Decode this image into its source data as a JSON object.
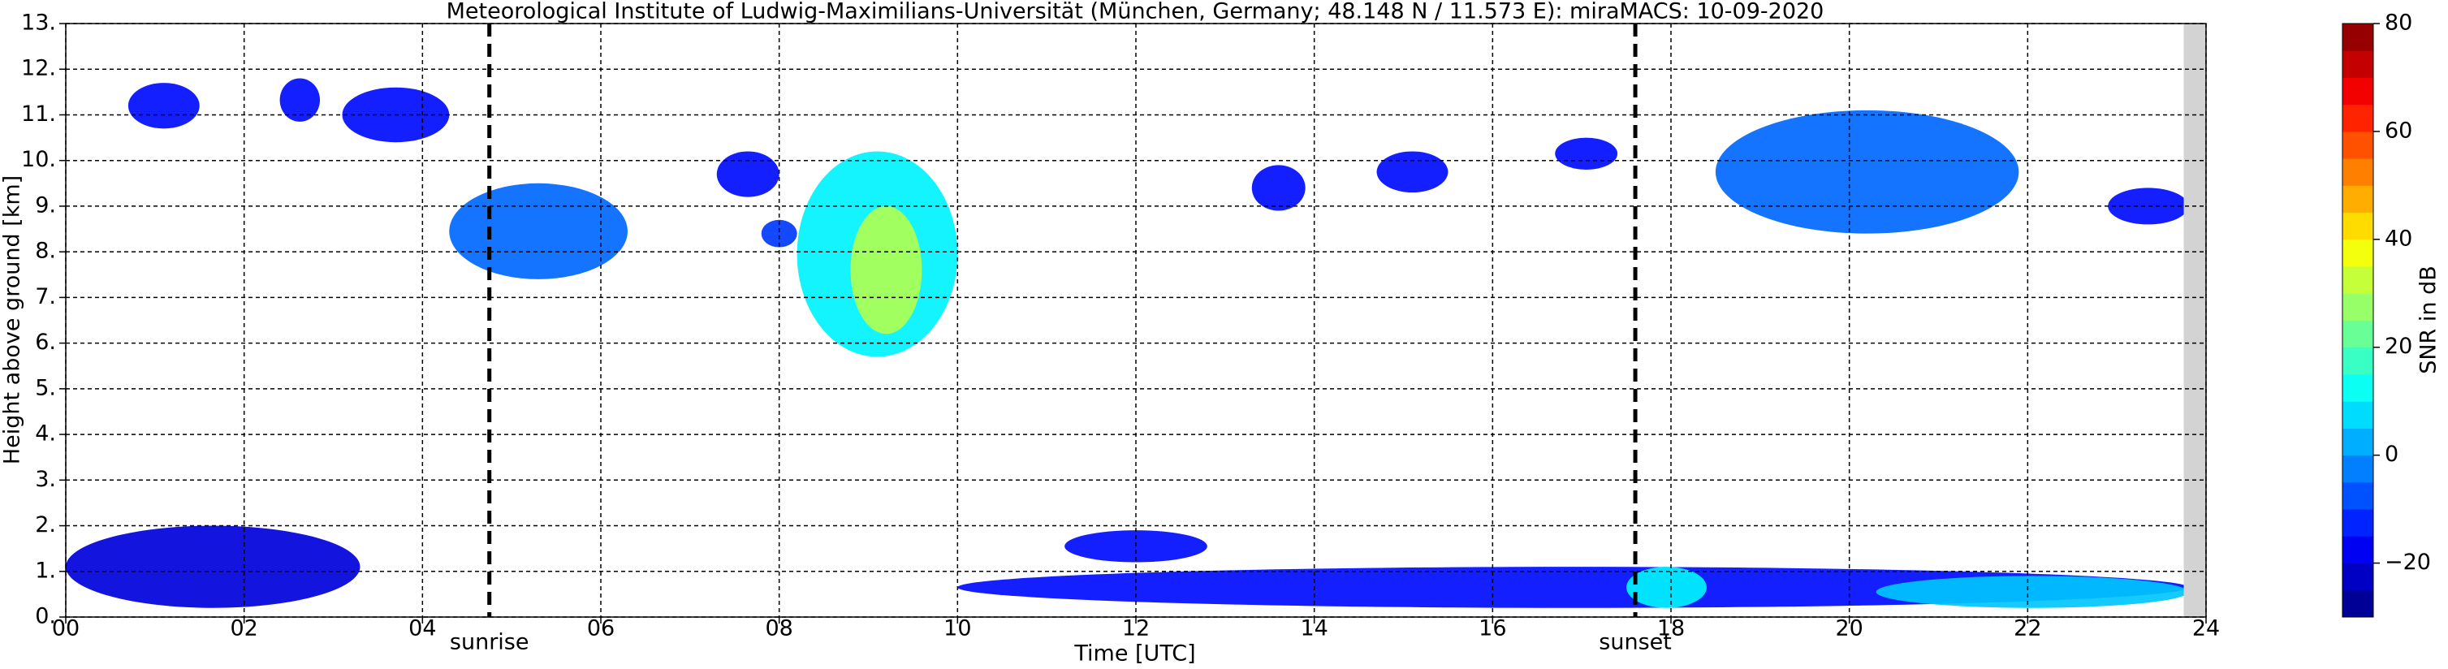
{
  "chart_data": {
    "type": "heatmap",
    "title": "Meteorological Institute of Ludwig-Maximilians-Universität (München, Germany; 48.148 N / 11.573 E):    miraMACS: 10-09-2020",
    "x_label": "Time [UTC]",
    "y_label": "Height above ground [km]",
    "xlim": [
      0,
      24
    ],
    "xticks": [
      {
        "value": 0,
        "label": "00"
      },
      {
        "value": 2,
        "label": "02"
      },
      {
        "value": 4,
        "label": "04"
      },
      {
        "value": 6,
        "label": "06"
      },
      {
        "value": 8,
        "label": "08"
      },
      10,
      12,
      14,
      16,
      18,
      20,
      22,
      24
    ],
    "ylim": [
      0,
      13
    ],
    "yticks": [
      {
        "value": 0,
        "label": "0."
      },
      {
        "value": 1,
        "label": "1."
      },
      {
        "value": 2,
        "label": "2."
      },
      {
        "value": 3,
        "label": "3."
      },
      {
        "value": 4,
        "label": "4."
      },
      {
        "value": 5,
        "label": "5."
      },
      {
        "value": 6,
        "label": "6."
      },
      {
        "value": 7,
        "label": "7."
      },
      {
        "value": 8,
        "label": "8."
      },
      {
        "value": 9,
        "label": "9."
      },
      {
        "value": 10,
        "label": "10."
      },
      {
        "value": 11,
        "label": "11."
      },
      {
        "value": 12,
        "label": "12."
      },
      {
        "value": 13,
        "label": "13."
      }
    ],
    "grid": true,
    "colormap": "jet",
    "colorbar_label": "SNR in dB",
    "colorbar_lim": [
      -30,
      80
    ],
    "colorbar_ticks": [
      {
        "value": -20,
        "label": "−20"
      },
      0,
      20,
      40,
      60,
      80
    ],
    "markers": [
      {
        "x": 4.75,
        "label": "sunrise"
      },
      {
        "x": 17.6,
        "label": "sunset"
      }
    ],
    "missing_data": [
      23.75,
      24
    ],
    "clouds": [
      {
        "start": 0.7,
        "end": 1.5,
        "bottom": 10.7,
        "top": 11.7,
        "snr": -15
      },
      {
        "start": 2.4,
        "end": 2.85,
        "bottom": 10.85,
        "top": 11.8,
        "snr": -15
      },
      {
        "start": 3.1,
        "end": 4.3,
        "bottom": 10.4,
        "top": 11.6,
        "snr": -15
      },
      {
        "start": 4.3,
        "end": 6.3,
        "bottom": 7.4,
        "top": 9.5,
        "snr": -5
      },
      {
        "start": 7.3,
        "end": 8.0,
        "bottom": 9.2,
        "top": 10.2,
        "snr": -15
      },
      {
        "start": 7.8,
        "end": 8.2,
        "bottom": 8.1,
        "top": 8.7,
        "snr": -10
      },
      {
        "start": 8.2,
        "end": 10.0,
        "bottom": 5.7,
        "top": 10.2,
        "snr": 10
      },
      {
        "start": 8.8,
        "end": 9.6,
        "bottom": 6.2,
        "top": 9.0,
        "snr": 30
      },
      {
        "start": 13.3,
        "end": 13.9,
        "bottom": 8.9,
        "top": 9.9,
        "snr": -15
      },
      {
        "start": 14.7,
        "end": 15.5,
        "bottom": 9.3,
        "top": 10.2,
        "snr": -15
      },
      {
        "start": 16.7,
        "end": 17.4,
        "bottom": 9.8,
        "top": 10.5,
        "snr": -15
      },
      {
        "start": 18.5,
        "end": 21.9,
        "bottom": 8.4,
        "top": 11.1,
        "snr": -5
      },
      {
        "start": 22.9,
        "end": 23.8,
        "bottom": 8.6,
        "top": 9.4,
        "snr": -15
      },
      {
        "start": 0,
        "end": 3.3,
        "bottom": 0.2,
        "top": 2.0,
        "snr": -20
      },
      {
        "start": 11.2,
        "end": 12.8,
        "bottom": 1.2,
        "top": 1.9,
        "snr": -15
      },
      {
        "start": 10,
        "end": 23.8,
        "bottom": 0.2,
        "top": 1.1,
        "snr": -15
      },
      {
        "start": 17.5,
        "end": 18.4,
        "bottom": 0.2,
        "top": 1.1,
        "snr": 10
      },
      {
        "start": 20.3,
        "end": 23.8,
        "bottom": 0.2,
        "top": 0.9,
        "snr": 5
      }
    ]
  }
}
